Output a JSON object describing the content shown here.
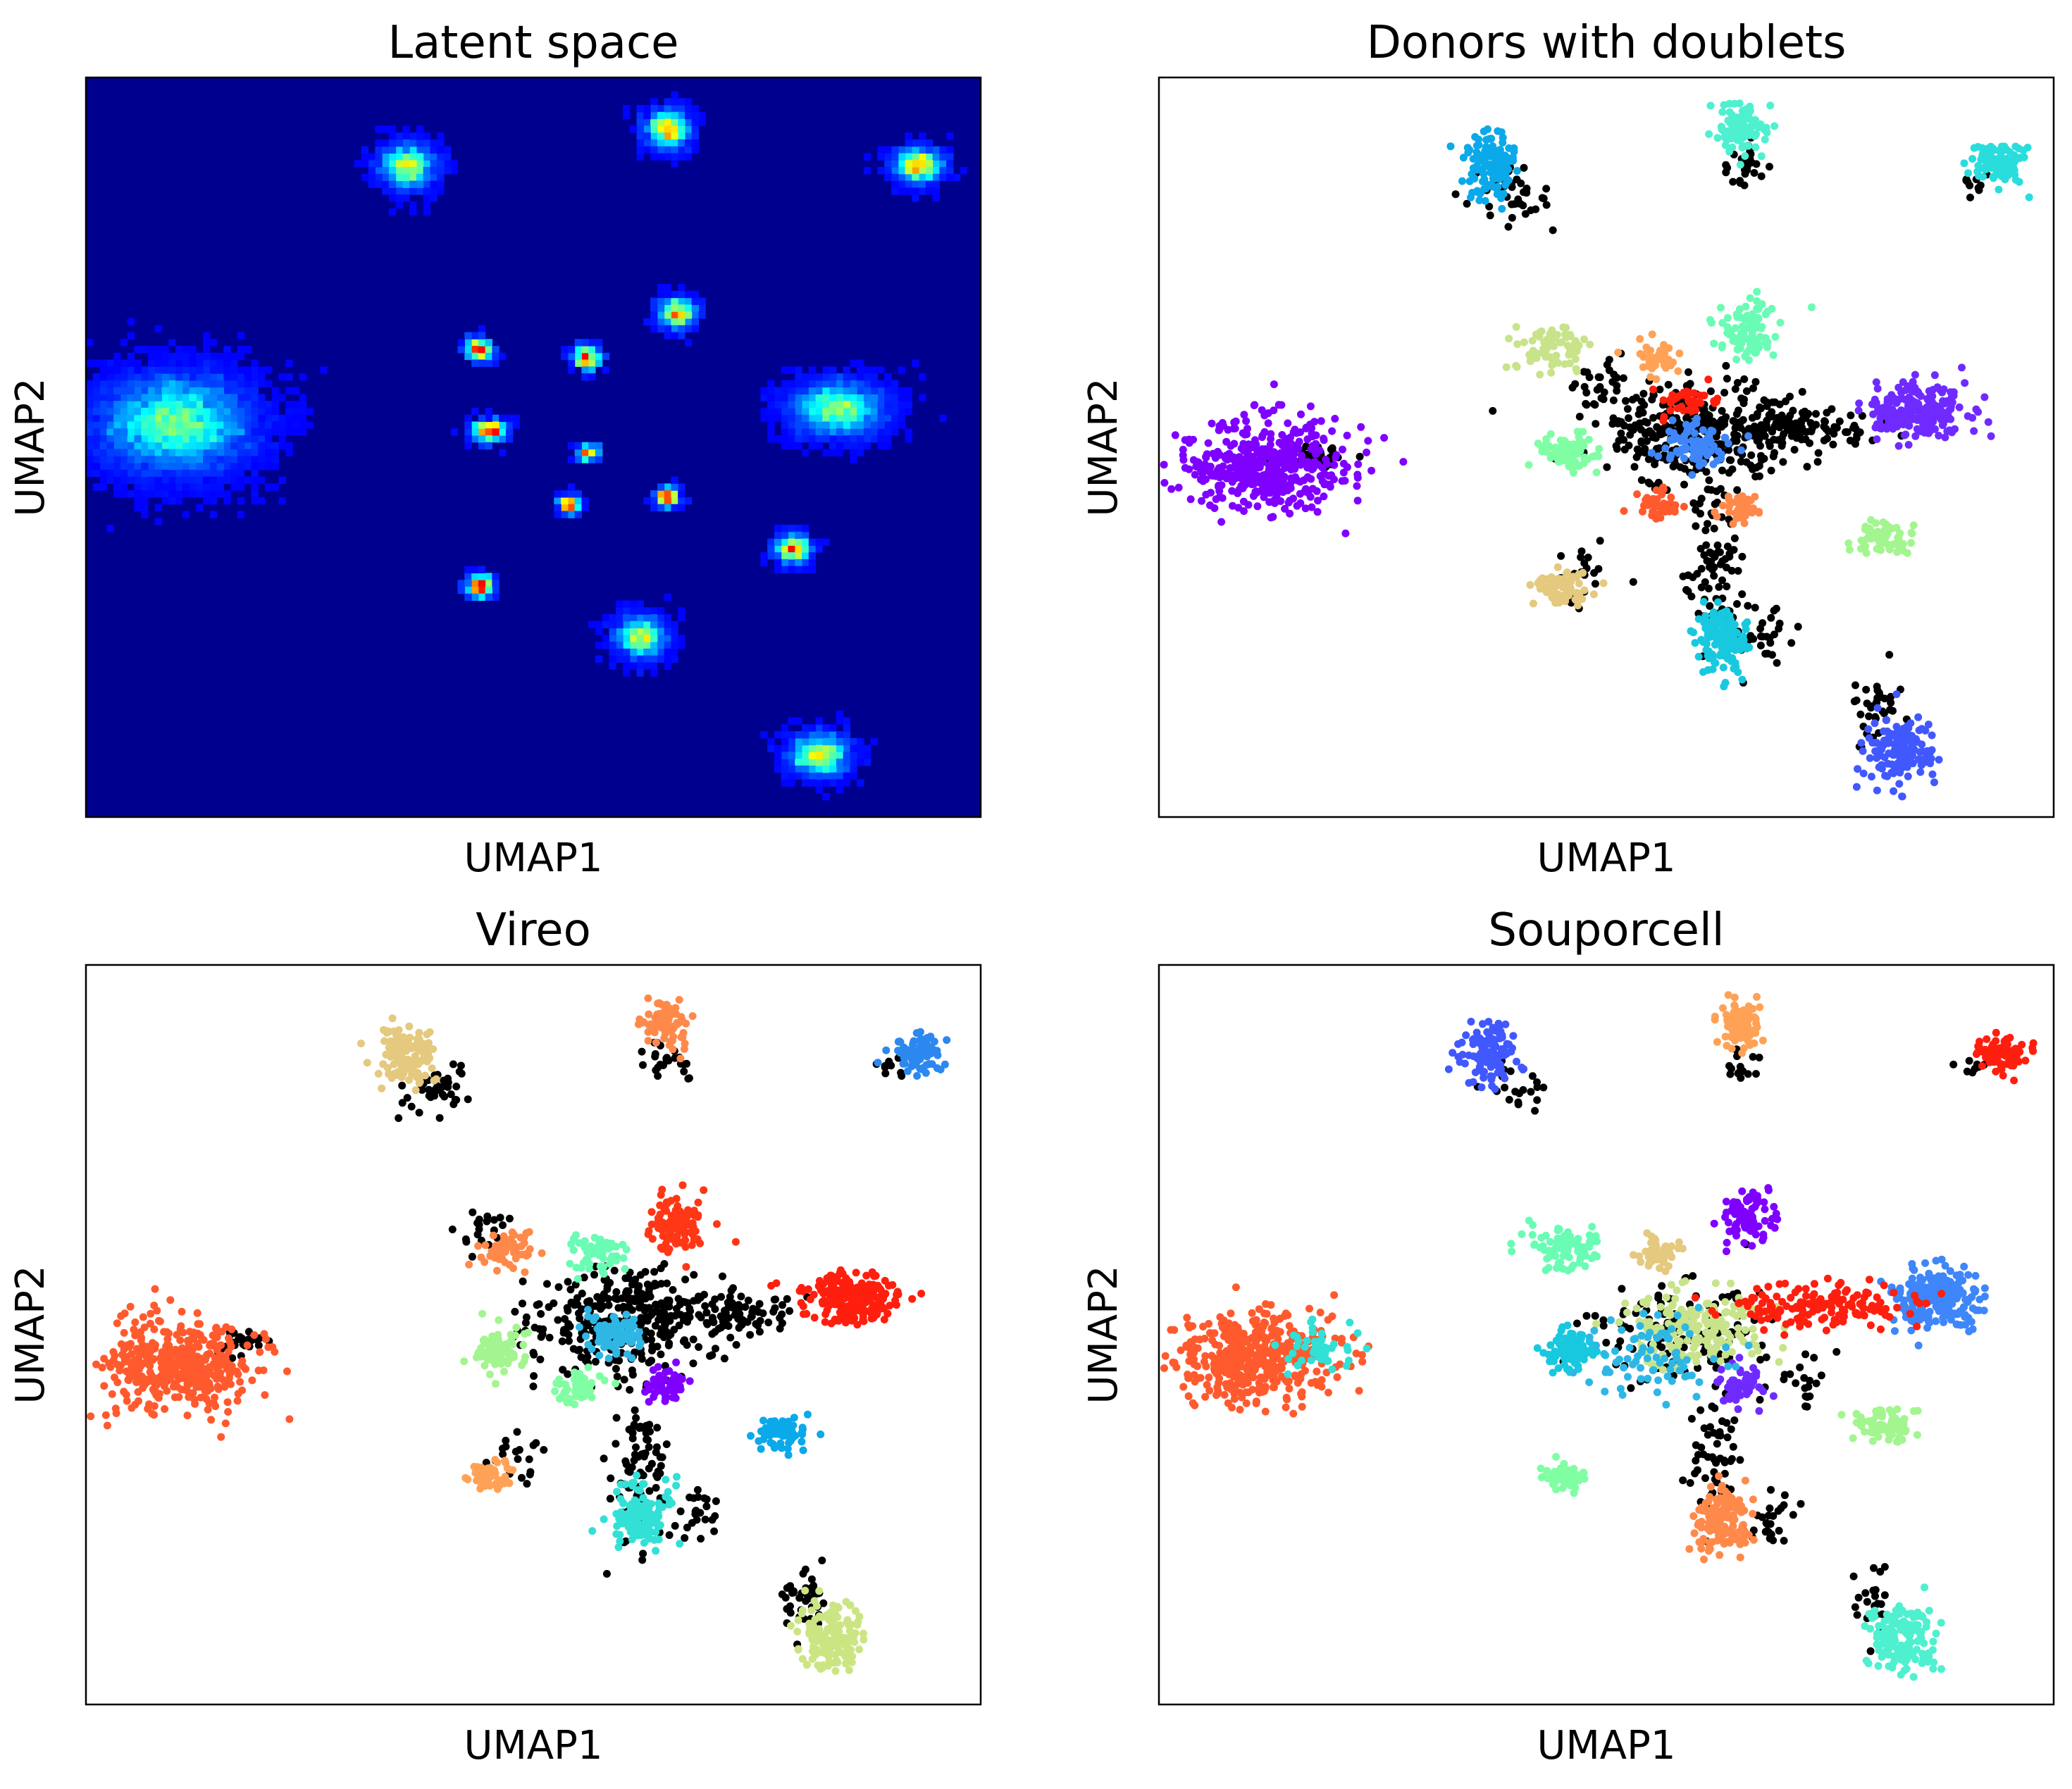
{
  "figure": {
    "panels": [
      {
        "id": "latent",
        "title": "Latent space",
        "xlabel": "UMAP1",
        "ylabel": "UMAP2"
      },
      {
        "id": "donors",
        "title": "Donors with doublets",
        "xlabel": "UMAP1",
        "ylabel": "UMAP2"
      },
      {
        "id": "vireo",
        "title": "Vireo",
        "xlabel": "UMAP1",
        "ylabel": "UMAP2"
      },
      {
        "id": "souporcell",
        "title": "Souporcell",
        "xlabel": "UMAP1",
        "ylabel": "UMAP2"
      }
    ]
  },
  "chart_data": [
    {
      "type": "heatmap",
      "title": "Latent space",
      "xlabel": "UMAP1",
      "ylabel": "UMAP2",
      "xlim": [
        0,
        100
      ],
      "ylim": [
        0,
        100
      ],
      "ticks": "none",
      "colormap": "jet",
      "background": "#00008f",
      "clusters": [
        {
          "x": 10,
          "y": 53,
          "sx": 4.5,
          "sy": 3.5,
          "intensity": 0.55
        },
        {
          "x": 36,
          "y": 88,
          "sx": 1.6,
          "sy": 1.6,
          "intensity": 0.7
        },
        {
          "x": 65,
          "y": 93,
          "sx": 1.3,
          "sy": 1.4,
          "intensity": 0.8
        },
        {
          "x": 93,
          "y": 88,
          "sx": 1.5,
          "sy": 1.3,
          "intensity": 0.8
        },
        {
          "x": 44,
          "y": 63,
          "sx": 0.8,
          "sy": 0.8,
          "intensity": 1.0
        },
        {
          "x": 56,
          "y": 62,
          "sx": 0.8,
          "sy": 0.8,
          "intensity": 1.0
        },
        {
          "x": 66,
          "y": 68,
          "sx": 1.1,
          "sy": 1.1,
          "intensity": 0.9
        },
        {
          "x": 84,
          "y": 55,
          "sx": 2.8,
          "sy": 2.0,
          "intensity": 0.6
        },
        {
          "x": 45,
          "y": 52,
          "sx": 1.0,
          "sy": 0.8,
          "intensity": 1.0
        },
        {
          "x": 56,
          "y": 49,
          "sx": 0.6,
          "sy": 0.6,
          "intensity": 0.9
        },
        {
          "x": 54,
          "y": 42,
          "sx": 0.6,
          "sy": 0.6,
          "intensity": 0.9
        },
        {
          "x": 65,
          "y": 43,
          "sx": 0.7,
          "sy": 0.7,
          "intensity": 0.9
        },
        {
          "x": 79,
          "y": 36,
          "sx": 1.0,
          "sy": 1.0,
          "intensity": 1.0
        },
        {
          "x": 44,
          "y": 31,
          "sx": 0.8,
          "sy": 0.8,
          "intensity": 1.0
        },
        {
          "x": 62,
          "y": 24,
          "sx": 1.5,
          "sy": 1.5,
          "intensity": 0.7
        },
        {
          "x": 82,
          "y": 8,
          "sx": 1.8,
          "sy": 1.5,
          "intensity": 0.7
        }
      ]
    },
    {
      "type": "scatter",
      "title": "Donors with doublets",
      "xlabel": "UMAP1",
      "ylabel": "UMAP2",
      "xlim": [
        0,
        100
      ],
      "ylim": [
        0,
        100
      ],
      "ticks": "none",
      "doublet_color": "#000000",
      "clusters": [
        {
          "x": 12,
          "y": 47,
          "sx": 4.5,
          "sy": 3.2,
          "n": 420,
          "color": "#7f00ff"
        },
        {
          "x": 37,
          "y": 88,
          "sx": 1.6,
          "sy": 2.2,
          "n": 130,
          "color": "#0ba9e9"
        },
        {
          "x": 65,
          "y": 93,
          "sx": 1.5,
          "sy": 1.6,
          "n": 90,
          "color": "#4ff0cf"
        },
        {
          "x": 94,
          "y": 88,
          "sx": 1.6,
          "sy": 1.3,
          "n": 90,
          "color": "#2adddd"
        },
        {
          "x": 44,
          "y": 63,
          "sx": 2.0,
          "sy": 1.6,
          "n": 80,
          "color": "#c8e38a"
        },
        {
          "x": 56,
          "y": 62,
          "sx": 1.2,
          "sy": 1.2,
          "n": 45,
          "color": "#ffa256"
        },
        {
          "x": 66,
          "y": 66,
          "sx": 1.6,
          "sy": 1.9,
          "n": 100,
          "color": "#6afcb4"
        },
        {
          "x": 85,
          "y": 55,
          "sx": 2.8,
          "sy": 1.9,
          "n": 220,
          "color": "#6f2bff"
        },
        {
          "x": 46,
          "y": 49,
          "sx": 1.6,
          "sy": 1.3,
          "n": 90,
          "color": "#80fea3"
        },
        {
          "x": 60,
          "y": 50,
          "sx": 1.8,
          "sy": 1.5,
          "n": 90,
          "color": "#3e86f9"
        },
        {
          "x": 56,
          "y": 42,
          "sx": 1.2,
          "sy": 1.0,
          "n": 45,
          "color": "#ff5a2e"
        },
        {
          "x": 65,
          "y": 42,
          "sx": 1.2,
          "sy": 1.1,
          "n": 45,
          "color": "#ff894a"
        },
        {
          "x": 81,
          "y": 38,
          "sx": 1.5,
          "sy": 1.2,
          "n": 70,
          "color": "#a3f58f"
        },
        {
          "x": 45,
          "y": 31,
          "sx": 1.5,
          "sy": 1.2,
          "n": 70,
          "color": "#e4c97e"
        },
        {
          "x": 63,
          "y": 24,
          "sx": 1.6,
          "sy": 2.2,
          "n": 140,
          "color": "#18c8df"
        },
        {
          "x": 83,
          "y": 9,
          "sx": 1.9,
          "sy": 2.4,
          "n": 150,
          "color": "#4158fe"
        },
        {
          "x": 59,
          "y": 56,
          "sx": 2.0,
          "sy": 1.0,
          "n": 40,
          "color": "#ff1f0f"
        }
      ],
      "doublets": [
        {
          "x": 60,
          "y": 52,
          "sx": 5.5,
          "sy": 4.0,
          "n": 300
        },
        {
          "x": 72,
          "y": 53,
          "sx": 4.0,
          "sy": 1.8,
          "n": 110
        },
        {
          "x": 62,
          "y": 33,
          "sx": 1.5,
          "sy": 6.0,
          "n": 90
        },
        {
          "x": 40,
          "y": 84,
          "sx": 2.0,
          "sy": 2.0,
          "n": 40
        },
        {
          "x": 65,
          "y": 88,
          "sx": 1.2,
          "sy": 1.5,
          "n": 25
        },
        {
          "x": 91,
          "y": 86,
          "sx": 0.8,
          "sy": 0.8,
          "n": 10
        },
        {
          "x": 80,
          "y": 15,
          "sx": 1.3,
          "sy": 2.5,
          "n": 35
        },
        {
          "x": 18,
          "y": 49,
          "sx": 1.5,
          "sy": 1.0,
          "n": 30
        },
        {
          "x": 48,
          "y": 33,
          "sx": 2.0,
          "sy": 2.0,
          "n": 20
        },
        {
          "x": 68,
          "y": 24,
          "sx": 1.5,
          "sy": 2.0,
          "n": 25
        },
        {
          "x": 50,
          "y": 58,
          "sx": 2.0,
          "sy": 2.0,
          "n": 30
        }
      ]
    },
    {
      "type": "scatter",
      "title": "Vireo",
      "xlabel": "UMAP1",
      "ylabel": "UMAP2",
      "xlim": [
        0,
        100
      ],
      "ylim": [
        0,
        100
      ],
      "ticks": "none",
      "doublet_color": "#000000",
      "clusters": [
        {
          "x": 10,
          "y": 46,
          "sx": 4.5,
          "sy": 3.2,
          "n": 420,
          "color": "#ff5a2e"
        },
        {
          "x": 36,
          "y": 88,
          "sx": 1.5,
          "sy": 2.0,
          "n": 120,
          "color": "#e4c97e"
        },
        {
          "x": 65,
          "y": 92,
          "sx": 1.2,
          "sy": 1.6,
          "n": 80,
          "color": "#ff894a"
        },
        {
          "x": 93,
          "y": 88,
          "sx": 1.4,
          "sy": 1.3,
          "n": 90,
          "color": "#2c88ef"
        },
        {
          "x": 47,
          "y": 62,
          "sx": 1.5,
          "sy": 1.4,
          "n": 60,
          "color": "#ff894a"
        },
        {
          "x": 57,
          "y": 61,
          "sx": 1.6,
          "sy": 1.4,
          "n": 60,
          "color": "#6afcb4"
        },
        {
          "x": 66,
          "y": 65,
          "sx": 1.6,
          "sy": 1.9,
          "n": 100,
          "color": "#ff3716"
        },
        {
          "x": 86,
          "y": 55,
          "sx": 2.6,
          "sy": 1.7,
          "n": 220,
          "color": "#ff1f0f"
        },
        {
          "x": 46,
          "y": 48,
          "sx": 1.6,
          "sy": 1.4,
          "n": 80,
          "color": "#a3f58f"
        },
        {
          "x": 59,
          "y": 50,
          "sx": 1.7,
          "sy": 1.5,
          "n": 90,
          "color": "#2eb7e5"
        },
        {
          "x": 55,
          "y": 43,
          "sx": 1.3,
          "sy": 1.1,
          "n": 50,
          "color": "#80fea3"
        },
        {
          "x": 65,
          "y": 43,
          "sx": 1.4,
          "sy": 1.2,
          "n": 55,
          "color": "#7f00ff"
        },
        {
          "x": 78,
          "y": 37,
          "sx": 1.6,
          "sy": 1.2,
          "n": 70,
          "color": "#0ba9e9"
        },
        {
          "x": 45,
          "y": 31,
          "sx": 1.4,
          "sy": 1.0,
          "n": 50,
          "color": "#ffa256"
        },
        {
          "x": 62,
          "y": 25,
          "sx": 1.7,
          "sy": 2.2,
          "n": 140,
          "color": "#32e0d6"
        },
        {
          "x": 83,
          "y": 9,
          "sx": 1.8,
          "sy": 2.2,
          "n": 150,
          "color": "#cce583"
        }
      ],
      "doublets": [
        {
          "x": 60,
          "y": 52,
          "sx": 5.0,
          "sy": 3.5,
          "n": 320
        },
        {
          "x": 72,
          "y": 53,
          "sx": 3.5,
          "sy": 1.6,
          "n": 90
        },
        {
          "x": 62,
          "y": 32,
          "sx": 1.5,
          "sy": 6.0,
          "n": 90
        },
        {
          "x": 39,
          "y": 83,
          "sx": 2.0,
          "sy": 2.0,
          "n": 40
        },
        {
          "x": 65,
          "y": 87,
          "sx": 1.2,
          "sy": 1.5,
          "n": 25
        },
        {
          "x": 90,
          "y": 86,
          "sx": 0.8,
          "sy": 0.8,
          "n": 10
        },
        {
          "x": 80,
          "y": 14,
          "sx": 1.3,
          "sy": 2.5,
          "n": 40
        },
        {
          "x": 17,
          "y": 49,
          "sx": 1.5,
          "sy": 1.0,
          "n": 30
        },
        {
          "x": 49,
          "y": 33,
          "sx": 2.0,
          "sy": 2.0,
          "n": 20
        },
        {
          "x": 68,
          "y": 25,
          "sx": 1.5,
          "sy": 2.0,
          "n": 25
        },
        {
          "x": 44,
          "y": 64,
          "sx": 1.5,
          "sy": 1.5,
          "n": 20
        }
      ]
    },
    {
      "type": "scatter",
      "title": "Souporcell",
      "xlabel": "UMAP1",
      "ylabel": "UMAP2",
      "xlim": [
        0,
        100
      ],
      "ylim": [
        0,
        100
      ],
      "ticks": "none",
      "doublet_color": "#000000",
      "clusters": [
        {
          "x": 11,
          "y": 47,
          "sx": 4.5,
          "sy": 3.2,
          "n": 420,
          "color": "#ff5a2e"
        },
        {
          "x": 18,
          "y": 48,
          "sx": 1.8,
          "sy": 1.6,
          "n": 50,
          "color": "#32e0d6"
        },
        {
          "x": 37,
          "y": 88,
          "sx": 1.6,
          "sy": 2.0,
          "n": 120,
          "color": "#4158fe"
        },
        {
          "x": 65,
          "y": 92,
          "sx": 1.2,
          "sy": 1.6,
          "n": 80,
          "color": "#ffa256"
        },
        {
          "x": 94,
          "y": 88,
          "sx": 1.5,
          "sy": 1.2,
          "n": 90,
          "color": "#ff1f0f"
        },
        {
          "x": 45,
          "y": 62,
          "sx": 2.0,
          "sy": 1.6,
          "n": 80,
          "color": "#6afcb4"
        },
        {
          "x": 56,
          "y": 61,
          "sx": 1.2,
          "sy": 1.2,
          "n": 45,
          "color": "#e4c97e"
        },
        {
          "x": 66,
          "y": 66,
          "sx": 1.5,
          "sy": 1.8,
          "n": 90,
          "color": "#7f00ff"
        },
        {
          "x": 87,
          "y": 55,
          "sx": 2.6,
          "sy": 1.9,
          "n": 220,
          "color": "#3e86f9"
        },
        {
          "x": 46,
          "y": 48,
          "sx": 1.6,
          "sy": 1.4,
          "n": 80,
          "color": "#18c8df"
        },
        {
          "x": 60,
          "y": 51,
          "sx": 3.5,
          "sy": 2.5,
          "n": 200,
          "color": "#c8e38a"
        },
        {
          "x": 74,
          "y": 54,
          "sx": 5.0,
          "sy": 1.4,
          "n": 160,
          "color": "#ff1f0f"
        },
        {
          "x": 65,
          "y": 43,
          "sx": 1.3,
          "sy": 1.2,
          "n": 55,
          "color": "#6f2bff"
        },
        {
          "x": 81,
          "y": 38,
          "sx": 1.6,
          "sy": 1.2,
          "n": 70,
          "color": "#a3f58f"
        },
        {
          "x": 45,
          "y": 31,
          "sx": 1.4,
          "sy": 1.0,
          "n": 50,
          "color": "#80fea3"
        },
        {
          "x": 63,
          "y": 25,
          "sx": 1.7,
          "sy": 2.2,
          "n": 140,
          "color": "#ff894a"
        },
        {
          "x": 83,
          "y": 9,
          "sx": 1.8,
          "sy": 2.2,
          "n": 150,
          "color": "#4ff0cf"
        },
        {
          "x": 55,
          "y": 47,
          "sx": 4.0,
          "sy": 3.0,
          "n": 80,
          "color": "#2eb7e5"
        }
      ],
      "doublets": [
        {
          "x": 58,
          "y": 50,
          "sx": 5.0,
          "sy": 3.5,
          "n": 120
        },
        {
          "x": 62,
          "y": 33,
          "sx": 1.5,
          "sy": 6.0,
          "n": 60
        },
        {
          "x": 40,
          "y": 84,
          "sx": 2.0,
          "sy": 2.0,
          "n": 20
        },
        {
          "x": 65,
          "y": 87,
          "sx": 1.2,
          "sy": 1.5,
          "n": 15
        },
        {
          "x": 91,
          "y": 86,
          "sx": 0.8,
          "sy": 0.8,
          "n": 8
        },
        {
          "x": 80,
          "y": 14,
          "sx": 1.3,
          "sy": 2.5,
          "n": 25
        },
        {
          "x": 68,
          "y": 24,
          "sx": 1.5,
          "sy": 2.0,
          "n": 25
        },
        {
          "x": 72,
          "y": 43,
          "sx": 2.0,
          "sy": 2.0,
          "n": 20
        }
      ]
    }
  ]
}
